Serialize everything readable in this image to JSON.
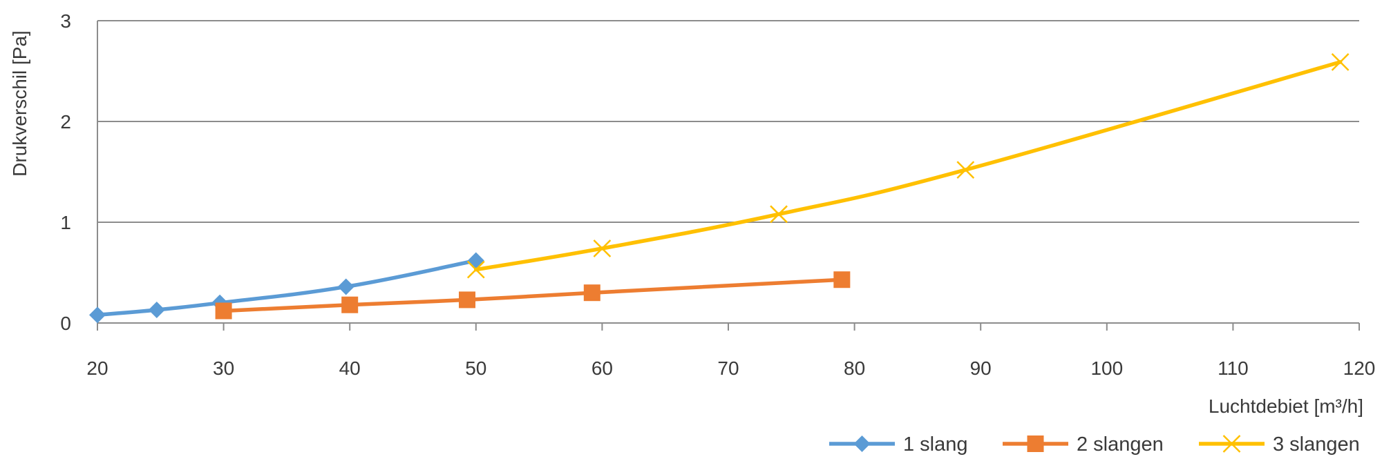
{
  "chart_data": {
    "type": "line",
    "title": "",
    "xlabel": "Luchtdebiet [m³/h]",
    "ylabel": "Drukverschil [Pa]",
    "xlim": [
      20,
      120
    ],
    "ylim": [
      0,
      3
    ],
    "x_ticks": [
      "20",
      "30",
      "40",
      "50",
      "60",
      "70",
      "80",
      "90",
      "100",
      "110",
      "120"
    ],
    "y_ticks": [
      "0",
      "1",
      "2",
      "3"
    ],
    "grid": "horizontal",
    "legend_position": "bottom-right",
    "series": [
      {
        "name": "1 slang",
        "color": "#5b9bd5",
        "marker": "diamond",
        "points": [
          [
            20,
            0.08
          ],
          [
            24.7,
            0.13
          ],
          [
            29.7,
            0.2
          ],
          [
            39.7,
            0.36
          ],
          [
            50,
            0.62
          ]
        ]
      },
      {
        "name": "2 slangen",
        "color": "#ed7d31",
        "marker": "square",
        "points": [
          [
            30,
            0.12
          ],
          [
            40,
            0.18
          ],
          [
            49.3,
            0.23
          ],
          [
            59.2,
            0.3
          ],
          [
            79,
            0.43
          ]
        ]
      },
      {
        "name": "3 slangen",
        "color": "#ffc000",
        "marker": "x",
        "points": [
          [
            50,
            0.53
          ],
          [
            60,
            0.74
          ],
          [
            74,
            1.08
          ],
          [
            88.8,
            1.52
          ],
          [
            118.5,
            2.59
          ]
        ]
      }
    ]
  }
}
